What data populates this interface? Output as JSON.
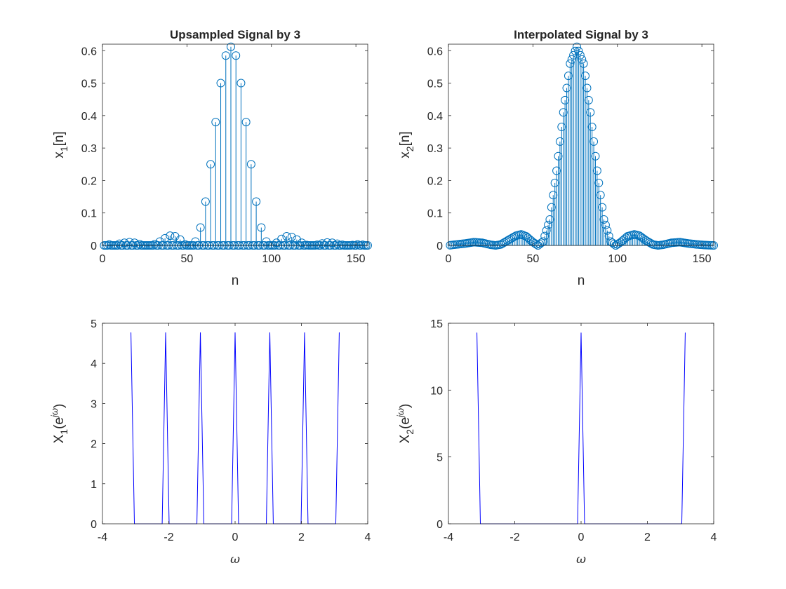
{
  "chart_data": [
    {
      "id": "upsampled",
      "type": "stem",
      "title": "Upsampled Signal by 3",
      "xlabel": "n",
      "ylabel_main": "x",
      "ylabel_sub": "1",
      "ylabel_tail": "[n]",
      "xlim": [
        0,
        157
      ],
      "ylim": [
        0,
        0.62
      ],
      "xticks": [
        "0",
        "50",
        "100",
        "150"
      ],
      "yticks": [
        "0",
        "0.1",
        "0.2",
        "0.3",
        "0.4",
        "0.5",
        "0.6"
      ],
      "color": "#0072BD",
      "upsample_factor": 3,
      "points": [
        {
          "n": 1,
          "y": 0.0
        },
        {
          "n": 4,
          "y": 0.003
        },
        {
          "n": 7,
          "y": 0.0
        },
        {
          "n": 10,
          "y": 0.005
        },
        {
          "n": 13,
          "y": 0.008
        },
        {
          "n": 16,
          "y": 0.01
        },
        {
          "n": 19,
          "y": 0.008
        },
        {
          "n": 22,
          "y": 0.004
        },
        {
          "n": 25,
          "y": 0.0
        },
        {
          "n": 28,
          "y": 0.0
        },
        {
          "n": 31,
          "y": 0.004
        },
        {
          "n": 34,
          "y": 0.012
        },
        {
          "n": 37,
          "y": 0.022
        },
        {
          "n": 40,
          "y": 0.03
        },
        {
          "n": 43,
          "y": 0.028
        },
        {
          "n": 46,
          "y": 0.018
        },
        {
          "n": 49,
          "y": 0.003
        },
        {
          "n": 52,
          "y": 0.0
        },
        {
          "n": 55,
          "y": 0.012
        },
        {
          "n": 58,
          "y": 0.055
        },
        {
          "n": 61,
          "y": 0.135
        },
        {
          "n": 64,
          "y": 0.25
        },
        {
          "n": 67,
          "y": 0.38
        },
        {
          "n": 70,
          "y": 0.5
        },
        {
          "n": 73,
          "y": 0.585
        },
        {
          "n": 76,
          "y": 0.612
        },
        {
          "n": 79,
          "y": 0.585
        },
        {
          "n": 82,
          "y": 0.5
        },
        {
          "n": 85,
          "y": 0.38
        },
        {
          "n": 88,
          "y": 0.25
        },
        {
          "n": 91,
          "y": 0.135
        },
        {
          "n": 94,
          "y": 0.055
        },
        {
          "n": 97,
          "y": 0.012
        },
        {
          "n": 100,
          "y": 0.0
        },
        {
          "n": 103,
          "y": 0.008
        },
        {
          "n": 106,
          "y": 0.02
        },
        {
          "n": 109,
          "y": 0.028
        },
        {
          "n": 112,
          "y": 0.026
        },
        {
          "n": 115,
          "y": 0.018
        },
        {
          "n": 118,
          "y": 0.008
        },
        {
          "n": 121,
          "y": 0.001
        },
        {
          "n": 124,
          "y": 0.0
        },
        {
          "n": 127,
          "y": 0.002
        },
        {
          "n": 130,
          "y": 0.006
        },
        {
          "n": 133,
          "y": 0.009
        },
        {
          "n": 136,
          "y": 0.008
        },
        {
          "n": 139,
          "y": 0.005
        },
        {
          "n": 142,
          "y": 0.002
        },
        {
          "n": 145,
          "y": 0.0
        },
        {
          "n": 148,
          "y": 0.001
        },
        {
          "n": 151,
          "y": 0.003
        },
        {
          "n": 154,
          "y": 0.002
        },
        {
          "n": 157,
          "y": 0.0
        }
      ]
    },
    {
      "id": "interpolated",
      "type": "stem",
      "title": "Interpolated Signal by 3",
      "xlabel": "n",
      "ylabel_main": "x",
      "ylabel_sub": "2",
      "ylabel_tail": "[n]",
      "xlim": [
        0,
        157
      ],
      "ylim": [
        0,
        0.62
      ],
      "xticks": [
        "0",
        "50",
        "100",
        "150"
      ],
      "yticks": [
        "0",
        "0.1",
        "0.2",
        "0.3",
        "0.4",
        "0.5",
        "0.6"
      ],
      "color": "#0072BD",
      "envelope": [
        {
          "n": 0,
          "y": 0.0
        },
        {
          "n": 5,
          "y": 0.003
        },
        {
          "n": 10,
          "y": 0.006
        },
        {
          "n": 15,
          "y": 0.01
        },
        {
          "n": 20,
          "y": 0.008
        },
        {
          "n": 25,
          "y": 0.002
        },
        {
          "n": 28,
          "y": 0.0
        },
        {
          "n": 31,
          "y": 0.003
        },
        {
          "n": 35,
          "y": 0.015
        },
        {
          "n": 40,
          "y": 0.03
        },
        {
          "n": 43,
          "y": 0.034
        },
        {
          "n": 46,
          "y": 0.028
        },
        {
          "n": 50,
          "y": 0.01
        },
        {
          "n": 53,
          "y": 0.0
        },
        {
          "n": 56,
          "y": 0.012
        },
        {
          "n": 60,
          "y": 0.08
        },
        {
          "n": 64,
          "y": 0.23
        },
        {
          "n": 68,
          "y": 0.41
        },
        {
          "n": 72,
          "y": 0.56
        },
        {
          "n": 76,
          "y": 0.612
        },
        {
          "n": 80,
          "y": 0.56
        },
        {
          "n": 84,
          "y": 0.41
        },
        {
          "n": 88,
          "y": 0.23
        },
        {
          "n": 92,
          "y": 0.08
        },
        {
          "n": 96,
          "y": 0.012
        },
        {
          "n": 99,
          "y": 0.0
        },
        {
          "n": 102,
          "y": 0.01
        },
        {
          "n": 106,
          "y": 0.028
        },
        {
          "n": 110,
          "y": 0.034
        },
        {
          "n": 113,
          "y": 0.03
        },
        {
          "n": 117,
          "y": 0.015
        },
        {
          "n": 121,
          "y": 0.003
        },
        {
          "n": 124,
          "y": 0.0
        },
        {
          "n": 127,
          "y": 0.002
        },
        {
          "n": 132,
          "y": 0.008
        },
        {
          "n": 137,
          "y": 0.01
        },
        {
          "n": 142,
          "y": 0.006
        },
        {
          "n": 147,
          "y": 0.003
        },
        {
          "n": 152,
          "y": 0.001
        },
        {
          "n": 157,
          "y": 0.0
        }
      ]
    },
    {
      "id": "spectrum1",
      "type": "line",
      "xlabel": "ω",
      "ylabel_main": "X",
      "ylabel_sub": "1",
      "ylabel_tail": "(e",
      "ylabel_sup": "jω",
      "ylabel_close": ")",
      "xlim": [
        -4,
        4
      ],
      "ylim": [
        0,
        5
      ],
      "xticks": [
        "-4",
        "-2",
        "0",
        "2",
        "4"
      ],
      "yticks": [
        "0",
        "1",
        "2",
        "3",
        "4",
        "5"
      ],
      "color": "#0000FF",
      "peak_centers": [
        -3.1416,
        -2.0944,
        -1.0472,
        0,
        1.0472,
        2.0944,
        3.1416
      ],
      "peak_value": 4.77,
      "peak_half_width": 0.105
    },
    {
      "id": "spectrum2",
      "type": "line",
      "xlabel": "ω",
      "ylabel_main": "X",
      "ylabel_sub": "2",
      "ylabel_tail": "(e",
      "ylabel_sup": "jω",
      "ylabel_close": ")",
      "xlim": [
        -4,
        4
      ],
      "ylim": [
        0,
        15
      ],
      "xticks": [
        "-4",
        "-2",
        "0",
        "2",
        "4"
      ],
      "yticks": [
        "0",
        "5",
        "10",
        "15"
      ],
      "color": "#0000FF",
      "peak_centers": [
        -3.1416,
        0,
        3.1416
      ],
      "peak_value": 14.3,
      "peak_half_width": 0.105
    }
  ]
}
